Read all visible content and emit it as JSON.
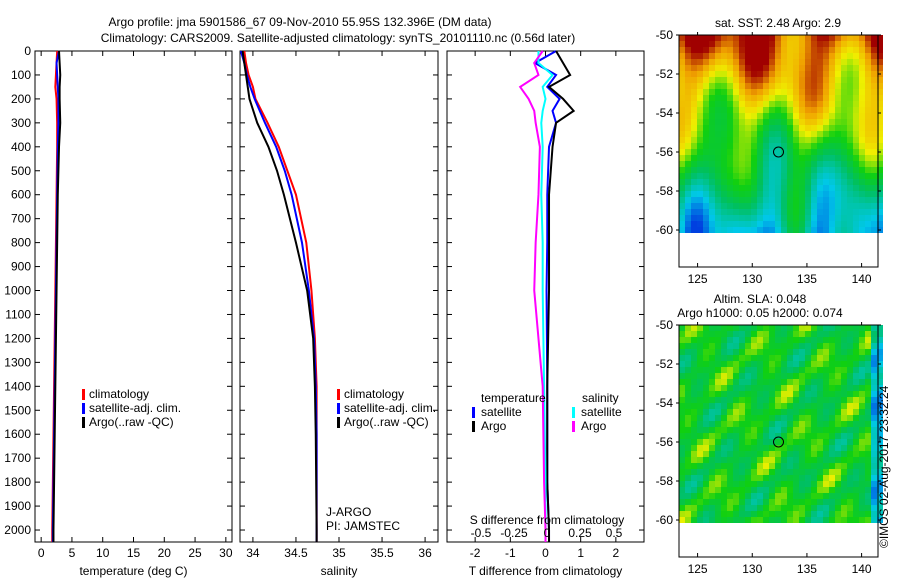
{
  "title_line1": "Argo profile: jma 5901586_67 09-Nov-2010 55.95S 132.396E (DM data)",
  "title_line2": "Climatology: CARS2009. Satellite-adjusted climatology: synTS_20101110.nc (0.56d later)",
  "colors": {
    "climatology": "#ff0000",
    "satellite": "#0000ff",
    "argo": "#000000",
    "sal_satellite": "#00ffff",
    "sal_argo": "#ff00ff"
  },
  "chart_data": [
    {
      "type": "line",
      "name": "temperature",
      "xlabel": "temperature (deg C)",
      "xlim": [
        -1,
        31
      ],
      "xticks": [
        0,
        5,
        10,
        15,
        20,
        25,
        30
      ],
      "ylim": [
        2050,
        0
      ],
      "yticks": [
        0,
        100,
        200,
        300,
        400,
        500,
        600,
        700,
        800,
        900,
        1000,
        1100,
        1200,
        1300,
        1400,
        1500,
        1600,
        1700,
        1800,
        1900,
        2000
      ],
      "legend": [
        "climatology",
        "satellite-adj. clim.",
        "Argo(..raw -QC)"
      ],
      "depth": [
        0,
        50,
        100,
        150,
        200,
        300,
        400,
        600,
        800,
        1000,
        1200,
        1400,
        1600,
        1800,
        2000,
        2050
      ],
      "series": [
        {
          "name": "climatology",
          "values": [
            2.6,
            2.5,
            2.4,
            2.3,
            2.5,
            2.6,
            2.6,
            2.5,
            2.4,
            2.3,
            2.2,
            2.1,
            2.0,
            1.9,
            1.8,
            1.8
          ]
        },
        {
          "name": "satellite-adj. clim.",
          "values": [
            2.9,
            2.5,
            2.6,
            2.7,
            2.8,
            2.8,
            2.7,
            2.6,
            2.5,
            2.4,
            2.3,
            2.2,
            2.1,
            2.0,
            1.9,
            1.9
          ]
        },
        {
          "name": "Argo(..raw -QC)",
          "values": [
            2.9,
            3.0,
            3.1,
            3.0,
            3.0,
            3.1,
            2.9,
            2.7,
            2.6,
            2.5,
            2.4,
            2.3,
            2.2,
            2.1,
            2.0,
            2.0
          ]
        }
      ]
    },
    {
      "type": "line",
      "name": "salinity",
      "xlabel": "salinity",
      "xlim": [
        33.85,
        36.15
      ],
      "xticks": [
        34,
        34.5,
        35,
        35.5,
        36
      ],
      "legend": [
        "climatology",
        "satellite-adj. clim.",
        "Argo(..raw -QC)"
      ],
      "annotation": [
        "J-ARGO",
        "PI: JAMSTEC"
      ],
      "depth": [
        0,
        50,
        100,
        150,
        200,
        300,
        400,
        500,
        600,
        800,
        1000,
        1200,
        1400,
        1600,
        2000,
        2050
      ],
      "series": [
        {
          "name": "climatology",
          "values": [
            33.9,
            33.92,
            33.95,
            34.0,
            34.03,
            34.17,
            34.3,
            34.4,
            34.5,
            34.62,
            34.68,
            34.72,
            34.74,
            34.74,
            34.74,
            34.74
          ]
        },
        {
          "name": "satellite-adj. clim.",
          "values": [
            33.86,
            33.9,
            33.93,
            33.97,
            34.02,
            34.14,
            34.27,
            34.37,
            34.45,
            34.57,
            34.65,
            34.71,
            34.73,
            34.74,
            34.74,
            34.74
          ]
        },
        {
          "name": "Argo(..raw -QC)",
          "values": [
            33.88,
            33.9,
            33.92,
            33.94,
            33.96,
            34.05,
            34.18,
            34.28,
            34.36,
            34.5,
            34.63,
            34.7,
            34.72,
            34.73,
            34.74,
            34.74
          ]
        }
      ]
    },
    {
      "type": "line",
      "name": "difference",
      "xlabel": "T difference from climatology",
      "xlim": [
        -2.8,
        2.8
      ],
      "xticks": [
        -2,
        -1,
        0,
        1,
        2
      ],
      "x2label": "S difference from climatology",
      "x2ticks": [
        "-0.5",
        "-0.25",
        "0",
        "0.25",
        "0.5"
      ],
      "legend_temperature": {
        "title": "temperature",
        "items": [
          "satellite",
          "Argo"
        ]
      },
      "legend_salinity": {
        "title": "salinity",
        "items": [
          "satellite",
          "Argo"
        ]
      },
      "depth": [
        0,
        50,
        100,
        150,
        200,
        250,
        300,
        400,
        600,
        800,
        1000,
        1400,
        1800,
        2000,
        2050
      ],
      "series": [
        {
          "name": "T satellite",
          "values": [
            0.3,
            -0.3,
            0.3,
            0.05,
            0.4,
            0.2,
            0.3,
            0.1,
            0.05,
            0.05,
            0.03,
            0.05,
            0.05,
            0.1,
            0.1
          ]
        },
        {
          "name": "T Argo",
          "values": [
            0.3,
            0.5,
            0.7,
            0.1,
            0.5,
            0.8,
            0.3,
            0.2,
            0.1,
            0.1,
            0.1,
            0.05,
            0.05,
            0.1,
            0.1
          ]
        },
        {
          "name": "S satellite",
          "values": [
            -0.05,
            -0.05,
            0.05,
            -0.02,
            0.0,
            -0.02,
            -0.03,
            -0.02,
            -0.03,
            -0.02,
            -0.02,
            -0.01,
            0.0,
            0.0,
            0.0
          ]
        },
        {
          "name": "S Argo",
          "values": [
            -0.02,
            -0.08,
            -0.05,
            -0.18,
            -0.12,
            -0.08,
            -0.07,
            -0.04,
            -0.05,
            -0.07,
            -0.08,
            -0.02,
            -0.01,
            0.0,
            0.0
          ]
        }
      ]
    },
    {
      "type": "heatmap",
      "name": "sst-map",
      "title": "sat. SST: 2.48 Argo: 2.9",
      "xticks": [
        125,
        130,
        135,
        140
      ],
      "yticks": [
        -50,
        -52,
        -54,
        -56,
        -58,
        -60
      ],
      "marker": [
        132.4,
        -56
      ]
    },
    {
      "type": "heatmap",
      "name": "sla-map",
      "title_line1": "Altim. SLA: 0.048",
      "title_line2": "Argo h1000: 0.05 h2000: 0.074",
      "xticks": [
        125,
        130,
        135,
        140
      ],
      "yticks": [
        -50,
        -52,
        -54,
        -56,
        -58,
        -60
      ],
      "marker": [
        132.4,
        -56
      ]
    }
  ],
  "credit": "©IMOS 02-Aug-2017 23:32:24"
}
